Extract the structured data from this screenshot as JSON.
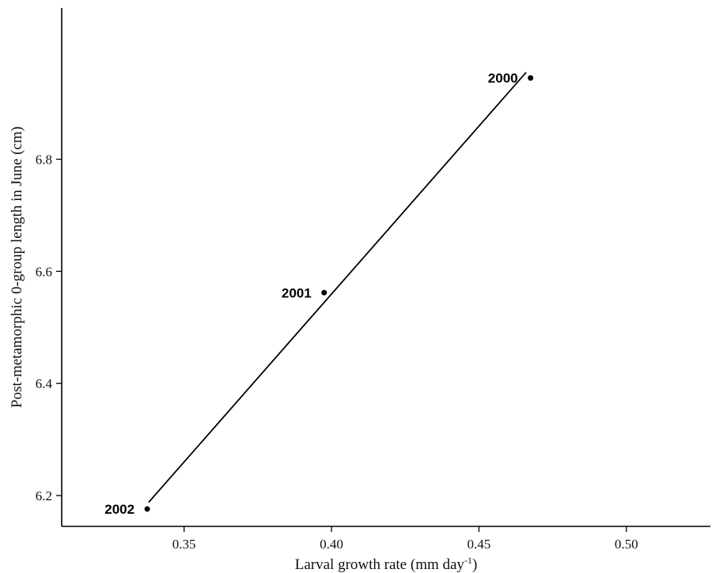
{
  "chart_data": {
    "type": "scatter",
    "title": "",
    "xlabel": "Larval growth rate (mm day",
    "xlabel_superscript": "-1",
    "xlabel_suffix": ")",
    "ylabel": "Post-metamorphic 0-group length in June (cm)",
    "xlim": [
      0.3085,
      0.5285
    ],
    "ylim": [
      6.145,
      7.07
    ],
    "x_ticks": [
      0.35,
      0.4,
      0.45,
      0.5
    ],
    "x_tick_labels": [
      "0.35",
      "0.40",
      "0.45",
      "0.50"
    ],
    "y_ticks": [
      6.2,
      6.4,
      6.6,
      6.8
    ],
    "y_tick_labels": [
      "6.2",
      "6.4",
      "6.6",
      "6.8"
    ],
    "grid": false,
    "points": [
      {
        "label": "2000",
        "x": 0.4675,
        "y": 6.945
      },
      {
        "label": "2001",
        "x": 0.3975,
        "y": 6.562
      },
      {
        "label": "2002",
        "x": 0.3375,
        "y": 6.176
      }
    ],
    "fit_line": {
      "x": [
        0.338,
        0.466
      ],
      "y": [
        6.188,
        6.955
      ]
    },
    "colors": {
      "axis": "#000000",
      "point": "#000000",
      "line": "#000000"
    }
  }
}
